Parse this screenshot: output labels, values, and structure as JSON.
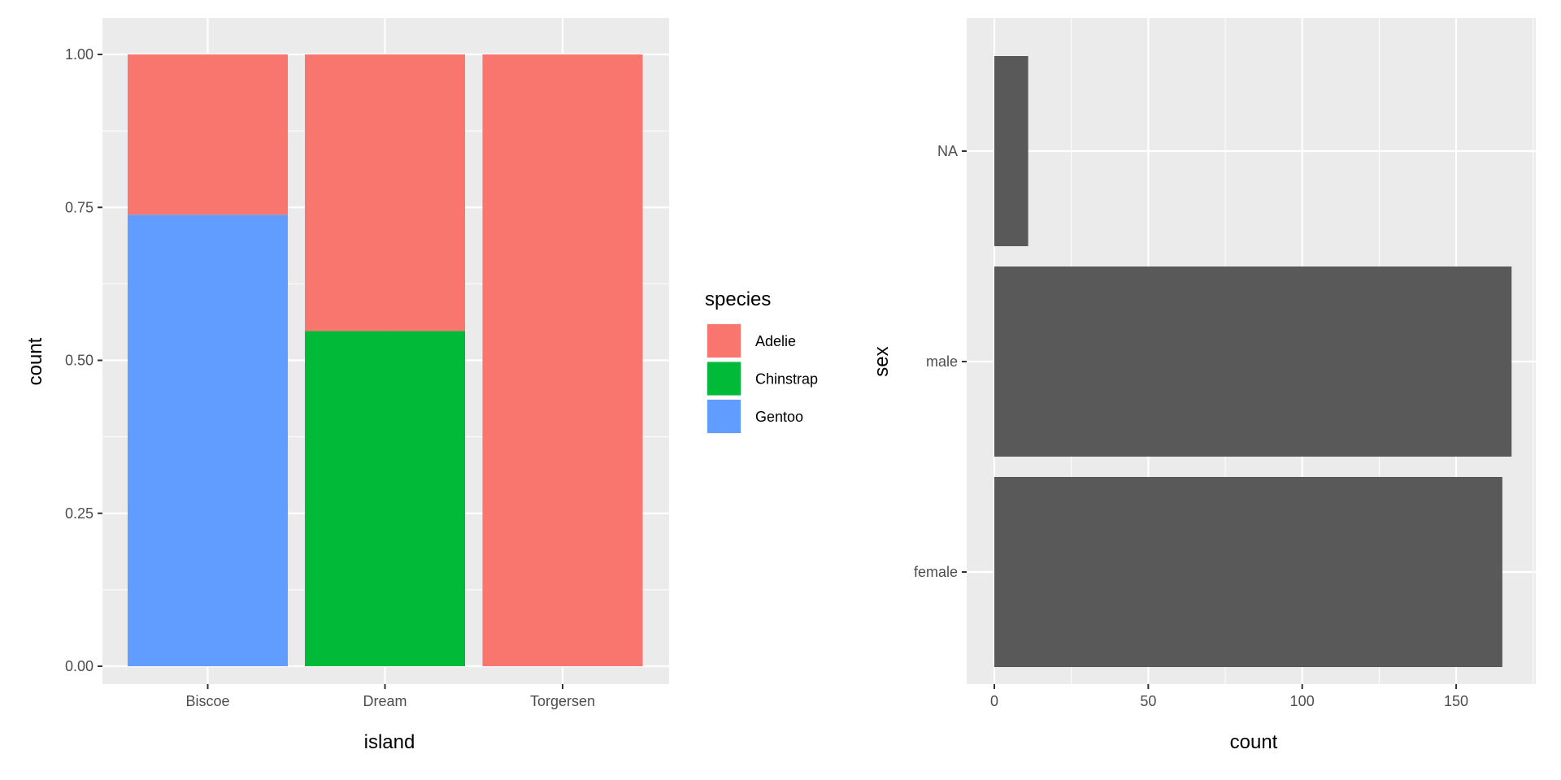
{
  "chart_data": [
    {
      "type": "bar",
      "stacked": "fill",
      "categories": [
        "Biscoe",
        "Dream",
        "Torgersen"
      ],
      "series": [
        {
          "name": "Adelie",
          "color": "#F8766D",
          "values": [
            0.262,
            0.452,
            1.0
          ]
        },
        {
          "name": "Chinstrap",
          "color": "#00BA38",
          "values": [
            0.0,
            0.548,
            0.0
          ]
        },
        {
          "name": "Gentoo",
          "color": "#619CFF",
          "values": [
            0.738,
            0.0,
            0.0
          ]
        }
      ],
      "xlabel": "island",
      "ylabel": "count",
      "yticks": [
        "0.00",
        "0.25",
        "0.50",
        "0.75",
        "1.00"
      ],
      "ylim": [
        0,
        1
      ],
      "legend": {
        "title": "species",
        "placement": "right"
      },
      "grid": true,
      "panel_background": "#EBEBEB"
    },
    {
      "type": "bar",
      "orientation": "horizontal",
      "categories": [
        "female",
        "male",
        "NA"
      ],
      "values": [
        165,
        168,
        11
      ],
      "bar_color": "#595959",
      "xlabel": "count",
      "ylabel": "sex",
      "xticks": [
        "0",
        "50",
        "100",
        "150"
      ],
      "xlim": [
        0,
        175
      ],
      "grid": true,
      "panel_background": "#EBEBEB"
    }
  ]
}
